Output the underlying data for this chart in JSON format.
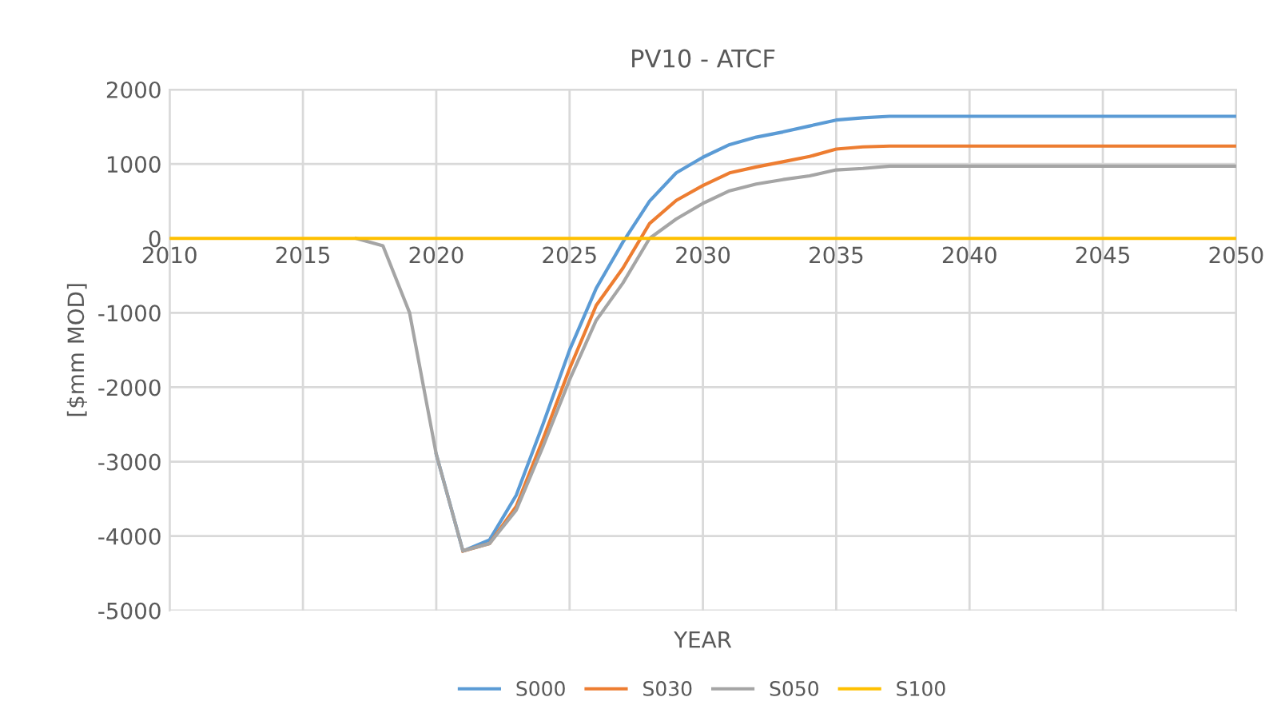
{
  "chart_data": {
    "type": "line",
    "title": "PV10 - ATCF",
    "xlabel": "YEAR",
    "ylabel": "[$mm MOD]",
    "xlim": [
      2010,
      2050
    ],
    "xticks": [
      2010,
      2015,
      2020,
      2025,
      2030,
      2035,
      2040,
      2045,
      2050
    ],
    "ylim": [
      -5000,
      2000
    ],
    "yticks": [
      -5000,
      -4000,
      -3000,
      -2000,
      -1000,
      0,
      1000,
      2000
    ],
    "grid": true,
    "legend": "bottom",
    "marker": "none",
    "line_style": "solid",
    "series": [
      {
        "name": "S000",
        "color": "#5b9bd5",
        "x": [
          2020,
          2021,
          2022,
          2023,
          2024,
          2025,
          2026,
          2027,
          2028,
          2029,
          2030,
          2031,
          2032,
          2033,
          2034,
          2035,
          2036,
          2037,
          2038,
          2039,
          2040,
          2041,
          2042,
          2043,
          2044,
          2045,
          2046,
          2047,
          2048,
          2049,
          2050
        ],
        "values": [
          -2900,
          -4200,
          -4050,
          -3450,
          -2500,
          -1500,
          -670,
          -50,
          500,
          880,
          1090,
          1260,
          1360,
          1430,
          1510,
          1590,
          1620,
          1640,
          1640,
          1640,
          1640,
          1640,
          1640,
          1640,
          1640,
          1640,
          1640,
          1640,
          1640,
          1640,
          1640
        ]
      },
      {
        "name": "S030",
        "color": "#ed7d31",
        "x": [
          2021,
          2022,
          2023,
          2024,
          2025,
          2026,
          2027,
          2028,
          2029,
          2030,
          2031,
          2032,
          2033,
          2034,
          2035,
          2036,
          2037,
          2038,
          2039,
          2040,
          2041,
          2042,
          2043,
          2044,
          2045,
          2046,
          2047,
          2048,
          2049,
          2050
        ],
        "values": [
          -4200,
          -4100,
          -3600,
          -2700,
          -1750,
          -900,
          -400,
          200,
          510,
          710,
          880,
          960,
          1030,
          1100,
          1200,
          1230,
          1240,
          1240,
          1240,
          1240,
          1240,
          1240,
          1240,
          1240,
          1240,
          1240,
          1240,
          1240,
          1240,
          1240
        ]
      },
      {
        "name": "S050",
        "color": "#a5a5a5",
        "x": [
          2017,
          2018,
          2019,
          2020,
          2021,
          2022,
          2023,
          2024,
          2025,
          2026,
          2027,
          2028,
          2029,
          2030,
          2031,
          2032,
          2033,
          2034,
          2035,
          2036,
          2037,
          2038,
          2039,
          2040,
          2041,
          2042,
          2043,
          2044,
          2045,
          2046,
          2047,
          2048,
          2049,
          2050
        ],
        "values": [
          0,
          -100,
          -1000,
          -2900,
          -4200,
          -4100,
          -3650,
          -2800,
          -1900,
          -1100,
          -600,
          0,
          260,
          470,
          640,
          730,
          790,
          840,
          920,
          940,
          970,
          970,
          970,
          970,
          970,
          970,
          970,
          970,
          970,
          970,
          970,
          970,
          970,
          970
        ]
      },
      {
        "name": "S100",
        "color": "#ffc000",
        "x": [
          2010,
          2050
        ],
        "values": [
          0,
          0
        ]
      }
    ]
  }
}
